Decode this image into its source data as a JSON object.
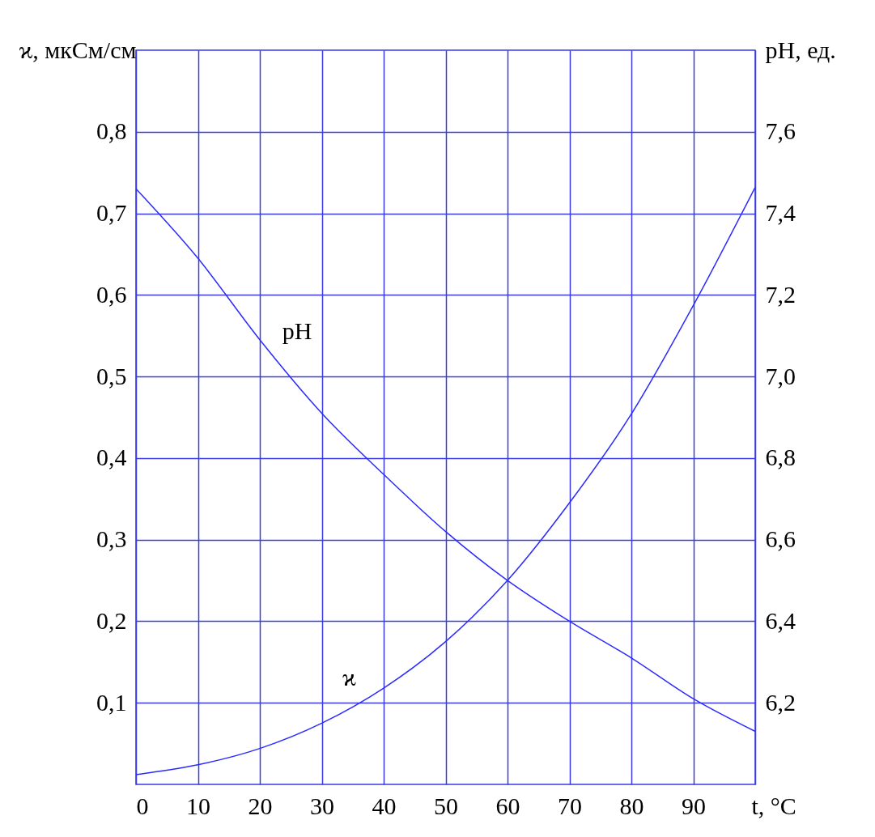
{
  "chart_data": {
    "type": "line",
    "xlabel": "t, °C",
    "ylabel": "ϰ, мкСм/см",
    "y2label": "pH, ед.",
    "x": [
      0,
      10,
      20,
      30,
      40,
      50,
      60,
      70,
      80,
      90,
      100
    ],
    "series": [
      {
        "name": "ϰ",
        "color": "#2b2bff",
        "values": [
          0.012,
          0.024,
          0.044,
          0.075,
          0.118,
          0.175,
          0.25,
          0.345,
          0.454,
          0.587,
          0.732
        ]
      },
      {
        "name": "pH",
        "color": "#2b2bff",
        "axis": "y2",
        "values": [
          7.46,
          7.29,
          7.09,
          6.91,
          6.76,
          6.62,
          6.5,
          6.4,
          6.31,
          6.21,
          6.13
        ]
      }
    ],
    "xlim": [
      0,
      100
    ],
    "xticks": [
      0,
      10,
      20,
      30,
      40,
      50,
      60,
      70,
      80,
      90,
      {
        "value": 100,
        "label": null
      }
    ],
    "ylim": [
      0,
      0.9
    ],
    "yticks": [
      {
        "value": 0.1,
        "label": "0,1"
      },
      {
        "value": 0.2,
        "label": "0,2"
      },
      {
        "value": 0.3,
        "label": "0,3"
      },
      {
        "value": 0.4,
        "label": "0,4"
      },
      {
        "value": 0.5,
        "label": "0,5"
      },
      {
        "value": 0.6,
        "label": "0,6"
      },
      {
        "value": 0.7,
        "label": "0,7"
      },
      {
        "value": 0.8,
        "label": "0,8"
      }
    ],
    "y2lim": [
      6.0,
      7.8
    ],
    "y2ticks": [
      {
        "value": 6.2,
        "label": "6,2"
      },
      {
        "value": 6.4,
        "label": "6,4"
      },
      {
        "value": 6.6,
        "label": "6,6"
      },
      {
        "value": 6.8,
        "label": "6,8"
      },
      {
        "value": 7.0,
        "label": "7,0"
      },
      {
        "value": 7.2,
        "label": "7,2"
      },
      {
        "value": 7.4,
        "label": "7,4"
      },
      {
        "value": 7.6,
        "label": "7,6"
      }
    ],
    "grid": true,
    "marker": "none",
    "line_style": "solid"
  }
}
